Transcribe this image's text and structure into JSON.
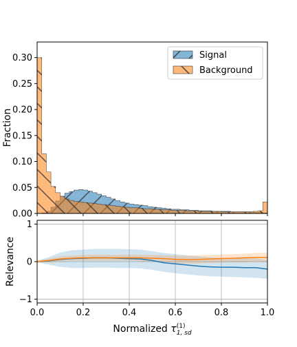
{
  "chart_data": [
    {
      "type": "bar",
      "subtype": "step-histogram",
      "xlabel_prefix": "Normalized ",
      "xlabel_tau": "τ",
      "xlabel_sup": "(1)",
      "xlabel_sub": "1, sd",
      "ylabel": "Fraction",
      "xlim": [
        0.0,
        1.0
      ],
      "ylim": [
        0.0,
        0.33
      ],
      "x_ticks": [
        0.0,
        0.2,
        0.4,
        0.6,
        0.8,
        1.0
      ],
      "x_tick_labels": [
        "0.0",
        "0.2",
        "0.4",
        "0.6",
        "0.8",
        "1.0"
      ],
      "y_ticks": [
        0.0,
        0.05,
        0.1,
        0.15,
        0.2,
        0.25,
        0.3
      ],
      "y_tick_labels": [
        "0.00",
        "0.05",
        "0.10",
        "0.15",
        "0.20",
        "0.25",
        "0.30"
      ],
      "grid": false,
      "legend_position": "top-right",
      "bin_edges": [
        0.0,
        0.02,
        0.04,
        0.06,
        0.08,
        0.1,
        0.12,
        0.14,
        0.16,
        0.18,
        0.2,
        0.22,
        0.24,
        0.26,
        0.28,
        0.3,
        0.32,
        0.34,
        0.36,
        0.38,
        0.4,
        0.42,
        0.44,
        0.46,
        0.48,
        0.5,
        0.52,
        0.54,
        0.56,
        0.58,
        0.6,
        0.62,
        0.64,
        0.66,
        0.68,
        0.7,
        0.72,
        0.74,
        0.76,
        0.78,
        0.8,
        0.82,
        0.84,
        0.86,
        0.88,
        0.9,
        0.92,
        0.94,
        0.96,
        0.98,
        1.0
      ],
      "series": [
        {
          "name": "Signal",
          "color": "#1f77b4",
          "hatch": "diagonal-up",
          "values": [
            0.0,
            0.001,
            0.004,
            0.012,
            0.024,
            0.033,
            0.039,
            0.042,
            0.045,
            0.046,
            0.045,
            0.043,
            0.04,
            0.037,
            0.034,
            0.031,
            0.028,
            0.025,
            0.022,
            0.02,
            0.018,
            0.017,
            0.016,
            0.015,
            0.013,
            0.012,
            0.011,
            0.01,
            0.009,
            0.008,
            0.008,
            0.007,
            0.007,
            0.006,
            0.006,
            0.005,
            0.005,
            0.005,
            0.004,
            0.004,
            0.004,
            0.004,
            0.003,
            0.003,
            0.003,
            0.003,
            0.003,
            0.002,
            0.002,
            0.001
          ]
        },
        {
          "name": "Background",
          "color": "#ff7f0e",
          "hatch": "diagonal-down",
          "values": [
            0.3,
            0.115,
            0.08,
            0.052,
            0.04,
            0.033,
            0.028,
            0.025,
            0.023,
            0.022,
            0.021,
            0.02,
            0.019,
            0.018,
            0.017,
            0.016,
            0.015,
            0.014,
            0.013,
            0.012,
            0.011,
            0.011,
            0.01,
            0.009,
            0.009,
            0.008,
            0.008,
            0.007,
            0.007,
            0.006,
            0.006,
            0.006,
            0.005,
            0.005,
            0.005,
            0.004,
            0.004,
            0.004,
            0.004,
            0.004,
            0.003,
            0.003,
            0.003,
            0.003,
            0.003,
            0.003,
            0.003,
            0.004,
            0.005,
            0.022
          ]
        }
      ]
    },
    {
      "type": "line",
      "subtype": "line-with-band",
      "xlabel": "",
      "ylabel": "Relevance",
      "xlim": [
        0.0,
        1.0
      ],
      "ylim": [
        -1.1,
        1.1
      ],
      "x_ticks": [
        0.0,
        0.2,
        0.4,
        0.6,
        0.8,
        1.0
      ],
      "y_ticks": [
        -1,
        0,
        1
      ],
      "y_tick_labels": [
        "−1",
        "0",
        "1"
      ],
      "grid": true,
      "x": [
        0.0,
        0.05,
        0.1,
        0.15,
        0.2,
        0.25,
        0.3,
        0.35,
        0.4,
        0.45,
        0.5,
        0.55,
        0.6,
        0.65,
        0.7,
        0.75,
        0.8,
        0.85,
        0.9,
        0.95,
        1.0
      ],
      "series": [
        {
          "color": "#1f77b4",
          "values": [
            0.0,
            0.02,
            0.06,
            0.08,
            0.09,
            0.1,
            0.1,
            0.09,
            0.08,
            0.07,
            0.03,
            -0.03,
            -0.06,
            -0.09,
            -0.12,
            -0.14,
            -0.15,
            -0.15,
            -0.16,
            -0.16,
            -0.2
          ],
          "lower": [
            -0.02,
            -0.08,
            -0.14,
            -0.17,
            -0.17,
            -0.16,
            -0.16,
            -0.17,
            -0.17,
            -0.18,
            -0.22,
            -0.27,
            -0.31,
            -0.34,
            -0.37,
            -0.39,
            -0.4,
            -0.41,
            -0.42,
            -0.43,
            -0.46
          ],
          "upper": [
            0.02,
            0.12,
            0.24,
            0.3,
            0.32,
            0.34,
            0.34,
            0.34,
            0.33,
            0.32,
            0.28,
            0.23,
            0.2,
            0.17,
            0.14,
            0.12,
            0.1,
            0.1,
            0.09,
            0.09,
            0.05
          ]
        },
        {
          "color": "#ff7f0e",
          "values": [
            0.0,
            0.03,
            0.07,
            0.09,
            0.1,
            0.1,
            0.1,
            0.1,
            0.1,
            0.1,
            0.09,
            0.08,
            0.06,
            0.05,
            0.06,
            0.07,
            0.08,
            0.09,
            0.1,
            0.11,
            0.11
          ],
          "lower": [
            -0.02,
            -0.02,
            0.0,
            0.02,
            0.02,
            0.02,
            0.02,
            0.02,
            0.02,
            0.01,
            0.0,
            -0.02,
            -0.05,
            -0.06,
            -0.05,
            -0.04,
            -0.03,
            -0.02,
            -0.02,
            -0.01,
            -0.02
          ],
          "upper": [
            0.02,
            0.08,
            0.14,
            0.16,
            0.18,
            0.18,
            0.18,
            0.18,
            0.18,
            0.18,
            0.18,
            0.17,
            0.16,
            0.16,
            0.17,
            0.18,
            0.19,
            0.2,
            0.21,
            0.23,
            0.24
          ]
        }
      ]
    }
  ]
}
